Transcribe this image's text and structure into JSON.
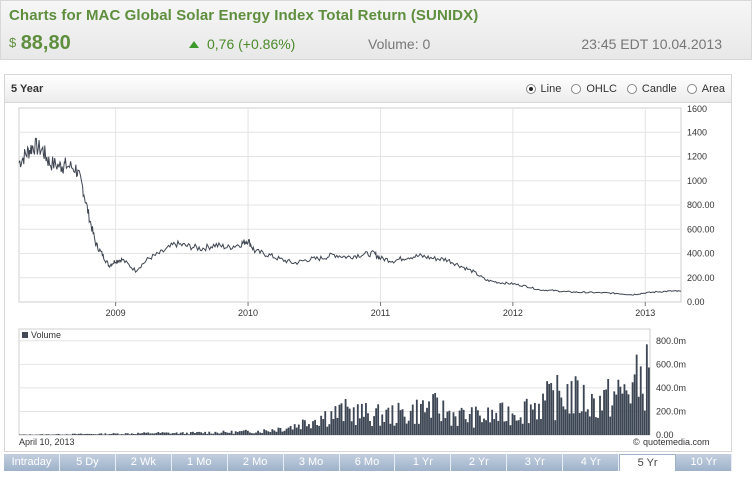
{
  "header": {
    "title": "Charts for MAC Global Solar Energy Index Total Return  (SUNIDX)",
    "currency_symbol": "$",
    "price": "88,80",
    "change": "0,76 (+0.86%)",
    "volume": "Volume: 0",
    "datetime": "23:45 EDT 10.04.2013"
  },
  "toolbar": {
    "period": "5 Year",
    "chart_types": [
      "Line",
      "OHLC",
      "Candle",
      "Area"
    ],
    "selected_chart_type": "Line"
  },
  "main_chart": {
    "y_ticks": [
      "1400",
      "1200",
      "1000",
      "800.00",
      "600.00",
      "400.00",
      "200.00",
      "0.00"
    ],
    "x_labels": [
      "2009",
      "2010",
      "2011",
      "2012",
      "2013"
    ]
  },
  "volume_chart": {
    "legend": "Volume",
    "y_ticks": [
      "800.0m",
      "600.0m",
      "400.0m",
      "200.0m",
      "0.00"
    ],
    "date_label": "April 10, 2013",
    "credit_prefix": "©",
    "credit": "quotemedia.com"
  },
  "tabs": {
    "items": [
      "Intraday",
      "5 Dy",
      "2 Wk",
      "1 Mo",
      "2 Mo",
      "3 Mo",
      "6 Mo",
      "1 Yr",
      "2 Yr",
      "3 Yr",
      "4 Yr",
      "5 Yr",
      "10 Yr"
    ],
    "active": "5 Yr"
  },
  "chart_data": {
    "type": "line",
    "title": "",
    "xlabel": "",
    "ylabel": "",
    "ylim": [
      0,
      1600
    ],
    "x": [
      2008.27,
      2008.33,
      2008.38,
      2008.45,
      2008.5,
      2008.58,
      2008.62,
      2008.7,
      2008.75,
      2008.8,
      2008.85,
      2008.9,
      2008.95,
      2009.0,
      2009.05,
      2009.15,
      2009.25,
      2009.35,
      2009.45,
      2009.55,
      2009.65,
      2009.75,
      2009.85,
      2009.95,
      2010.0,
      2010.05,
      2010.15,
      2010.25,
      2010.35,
      2010.45,
      2010.55,
      2010.65,
      2010.75,
      2010.85,
      2010.95,
      2011.0,
      2011.1,
      2011.2,
      2011.3,
      2011.4,
      2011.5,
      2011.6,
      2011.7,
      2011.8,
      2011.9,
      2012.0,
      2012.1,
      2012.2,
      2012.3,
      2012.4,
      2012.5,
      2012.6,
      2012.7,
      2012.8,
      2012.9,
      2013.0,
      2013.1,
      2013.2,
      2013.27
    ],
    "series": [
      {
        "values": [
          1150,
          1230,
          1290,
          1250,
          1150,
          1120,
          1130,
          1100,
          950,
          700,
          480,
          390,
          300,
          340,
          350,
          260,
          360,
          410,
          480,
          460,
          440,
          470,
          450,
          480,
          510,
          420,
          390,
          350,
          320,
          350,
          360,
          390,
          370,
          390,
          400,
          360,
          340,
          370,
          380,
          360,
          350,
          300,
          250,
          180,
          160,
          150,
          130,
          100,
          95,
          85,
          80,
          78,
          75,
          70,
          60,
          75,
          85,
          90,
          88
        ]
      }
    ],
    "volume": {
      "y_ticks_m": [
        0,
        200,
        400,
        600,
        800
      ],
      "approx_values_m": [
        5,
        8,
        12,
        15,
        20,
        28,
        25,
        35,
        40,
        60,
        120,
        250,
        320,
        260,
        280,
        380,
        260,
        240,
        300,
        420,
        560,
        420,
        560,
        820
      ]
    }
  }
}
